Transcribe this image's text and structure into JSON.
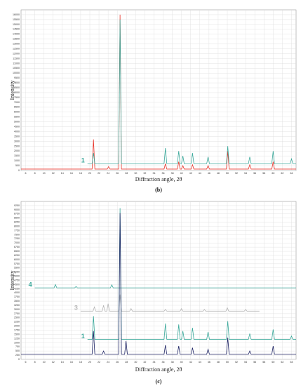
{
  "chart_data": [
    {
      "type": "line",
      "caption": "(b)",
      "xlabel": "Diffraction angle, 2θ",
      "ylabel": "Intensity",
      "xlim": [
        5,
        65
      ],
      "ylim": [
        0,
        16500
      ],
      "xticks": [
        6,
        8,
        10,
        12,
        14,
        16,
        18,
        20,
        22,
        24,
        26,
        28,
        30,
        32,
        34,
        36,
        38,
        40,
        42,
        44,
        46,
        48,
        50,
        52,
        54,
        56,
        58,
        60,
        62,
        64
      ],
      "yticks": [
        0,
        500,
        1000,
        1500,
        2000,
        2500,
        3000,
        3500,
        4000,
        4500,
        5000,
        5500,
        6000,
        6500,
        7000,
        7500,
        8000,
        8500,
        9000,
        9500,
        10000,
        10500,
        11000,
        11500,
        12000,
        12500,
        13000,
        13500,
        14000,
        14500,
        15000,
        15500,
        16000
      ],
      "grid": true,
      "series": [
        {
          "color": "#e8352b",
          "x": [
            5,
            20.5,
            20.8,
            21.1,
            23.8,
            24.1,
            24.4,
            26.3,
            26.6,
            26.9,
            36.2,
            36.5,
            36.8,
            39.1,
            39.4,
            39.7,
            40,
            40.3,
            40.6,
            42.1,
            42.4,
            42.7,
            45.5,
            45.8,
            46.1,
            49.8,
            50.1,
            50.4,
            54.6,
            54.9,
            55.2,
            59.7,
            60,
            60.3,
            65
          ],
          "values": [
            150,
            150,
            3200,
            150,
            150,
            400,
            150,
            150,
            16000,
            150,
            150,
            700,
            150,
            150,
            900,
            150,
            150,
            500,
            150,
            150,
            600,
            150,
            150,
            500,
            150,
            150,
            2000,
            150,
            150,
            600,
            150,
            150,
            900,
            150,
            150
          ]
        },
        {
          "name": "1",
          "color": "#3aa89a",
          "x": [
            19.5,
            20.5,
            20.8,
            21.1,
            26.3,
            26.6,
            26.9,
            36.2,
            36.5,
            36.8,
            39.1,
            39.4,
            39.7,
            40,
            40.3,
            40.6,
            42.1,
            42.4,
            42.7,
            45.5,
            45.8,
            46.1,
            49.8,
            50.1,
            50.4,
            54.6,
            54.9,
            55.2,
            59.7,
            60,
            60.3,
            63.7,
            64,
            64.3,
            65
          ],
          "values": [
            700,
            700,
            1800,
            700,
            700,
            15500,
            700,
            700,
            2300,
            700,
            700,
            2000,
            700,
            700,
            1500,
            700,
            700,
            1800,
            700,
            700,
            1400,
            700,
            700,
            2500,
            700,
            700,
            1400,
            700,
            700,
            2000,
            700,
            700,
            1200,
            700,
            700
          ]
        }
      ]
    },
    {
      "type": "line",
      "caption": "(c)",
      "xlabel": "Diffraction angle, 2θ",
      "ylabel": "Intensity",
      "xlim": [
        5,
        65
      ],
      "ylim": [
        0,
        9500
      ],
      "xticks": [
        6,
        8,
        10,
        12,
        14,
        16,
        18,
        20,
        22,
        24,
        26,
        28,
        30,
        32,
        34,
        36,
        38,
        40,
        42,
        44,
        46,
        48,
        50,
        52,
        54,
        56,
        58,
        60,
        62,
        64
      ],
      "yticks": [
        0,
        250,
        500,
        750,
        1000,
        1250,
        1500,
        1750,
        2000,
        2250,
        2500,
        2750,
        3000,
        3250,
        3500,
        3750,
        4000,
        4250,
        4500,
        4750,
        5000,
        5250,
        5500,
        5750,
        6000,
        6250,
        6500,
        6750,
        7000,
        7250,
        7500,
        7750,
        8000,
        8250,
        8500,
        8750,
        9000,
        9250
      ],
      "grid": true,
      "series": [
        {
          "name": "4",
          "color": "#3aa89a",
          "x": [
            8,
            12.2,
            12.5,
            12.8,
            16.7,
            17,
            17.3,
            24.5,
            24.8,
            25.1,
            65
          ],
          "values": [
            4300,
            4300,
            4500,
            4300,
            4300,
            4380,
            4300,
            4300,
            4480,
            4300,
            4300
          ]
        },
        {
          "name": "3",
          "color": "#b5b5b5",
          "x": [
            18,
            20.7,
            21,
            21.3,
            22.7,
            23,
            23.3,
            23.7,
            24,
            24.3,
            26.3,
            26.6,
            26.9,
            28.7,
            29,
            29.3,
            36.2,
            36.5,
            36.8,
            39.7,
            40,
            40.3,
            44.7,
            45,
            45.3,
            49.7,
            50,
            50.3,
            53.7,
            54,
            54.3,
            57
          ],
          "values": [
            2900,
            2900,
            3150,
            2900,
            2900,
            3250,
            2900,
            2900,
            3350,
            2900,
            2900,
            3900,
            2900,
            2900,
            3050,
            2900,
            2900,
            3000,
            2900,
            2900,
            3050,
            2900,
            2900,
            3000,
            2900,
            2900,
            3100,
            2900,
            2900,
            3000,
            2900,
            2900
          ]
        },
        {
          "name": "1",
          "color": "#3aa89a",
          "x": [
            19.5,
            20.5,
            20.8,
            21.1,
            26.3,
            26.6,
            26.9,
            36.2,
            36.5,
            36.8,
            39.1,
            39.4,
            39.7,
            40,
            40.3,
            40.6,
            42.1,
            42.4,
            42.7,
            45.5,
            45.8,
            46.1,
            49.8,
            50.1,
            50.4,
            54.6,
            54.9,
            55.2,
            59.7,
            60,
            60.3,
            63.7,
            64,
            64.3,
            65
          ],
          "values": [
            1200,
            1200,
            2600,
            1200,
            1200,
            9100,
            1200,
            1200,
            2150,
            1200,
            1200,
            2100,
            1200,
            1200,
            1700,
            1200,
            1200,
            1900,
            1200,
            1200,
            1650,
            1200,
            1200,
            2300,
            1200,
            1200,
            1550,
            1200,
            1200,
            1800,
            1200,
            1200,
            1400,
            1200,
            1200
          ]
        },
        {
          "color": "#1c2263",
          "x": [
            5,
            20.5,
            20.8,
            21.1,
            22.7,
            23,
            23.3,
            26.3,
            26.6,
            26.9,
            27.6,
            27.9,
            28.2,
            36.2,
            36.5,
            36.8,
            39.1,
            39.4,
            39.7,
            42.1,
            42.4,
            42.7,
            45.5,
            45.8,
            46.1,
            49.8,
            50.1,
            50.4,
            54.6,
            54.9,
            55.2,
            59.7,
            60,
            60.3,
            65
          ],
          "values": [
            300,
            300,
            1700,
            300,
            300,
            500,
            300,
            300,
            8800,
            300,
            300,
            1100,
            300,
            300,
            850,
            300,
            300,
            800,
            300,
            300,
            700,
            300,
            300,
            600,
            300,
            300,
            1300,
            300,
            300,
            500,
            300,
            300,
            800,
            300,
            300
          ]
        }
      ]
    }
  ]
}
